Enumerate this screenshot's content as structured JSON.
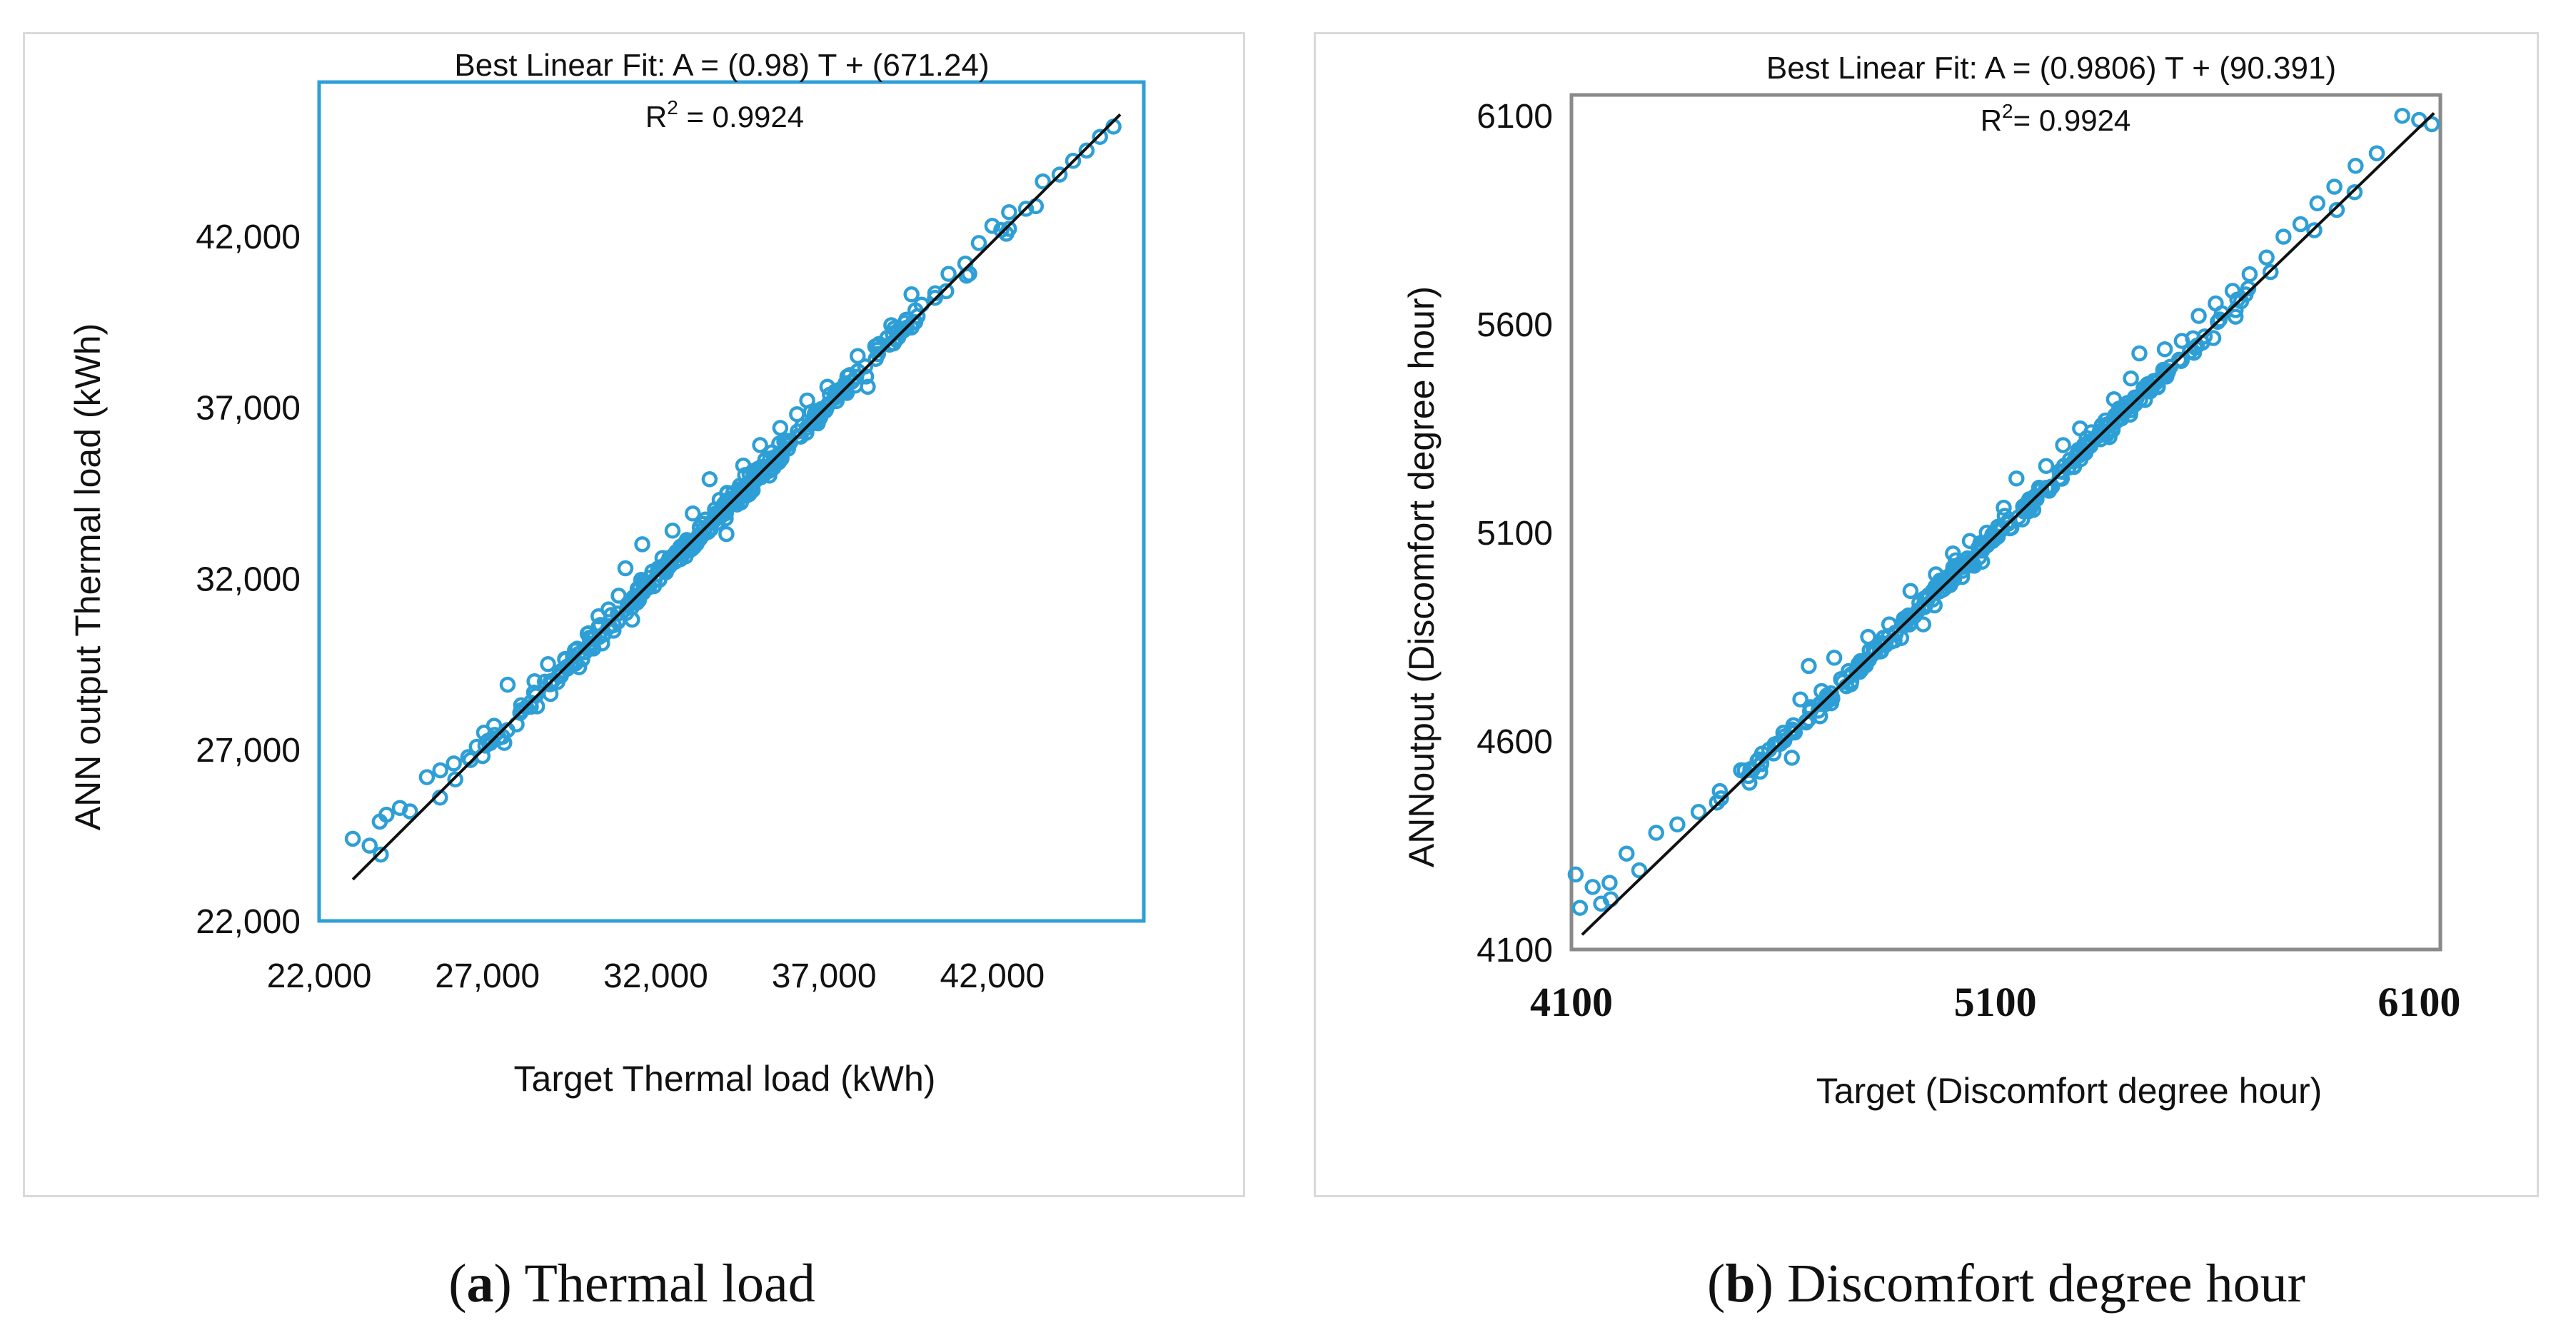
{
  "figure": {
    "colors": {
      "marker": "#2e9fd6",
      "fit_line": "#111111",
      "frame_a": "#2e9fd6",
      "frame_b": "#8a8a8a",
      "panel_border": "#d9d9d9"
    },
    "captions": [
      {
        "letter": "a",
        "text": "Thermal load"
      },
      {
        "letter": "b",
        "text": "Discomfort degree hour"
      }
    ]
  },
  "chart_data": [
    {
      "type": "scatter",
      "title": "Best Linear Fit: A = (0.98) T + (671.24)",
      "subtitle_prefix": "R",
      "subtitle_sup": "2",
      "subtitle_suffix": " = 0.9924",
      "xlabel": "Target Thermal load (kWh)",
      "ylabel": "ANN output Thermal load (kWh)",
      "xlim": [
        22000,
        46500
      ],
      "ylim": [
        22000,
        46500
      ],
      "xticks": [
        22000,
        27000,
        32000,
        37000,
        42000
      ],
      "yticks": [
        22000,
        27000,
        32000,
        37000,
        42000
      ],
      "xtick_labels": [
        "22,000",
        "27,000",
        "32,000",
        "37,000",
        "42,000"
      ],
      "ytick_labels": [
        "22,000",
        "27,000",
        "32,000",
        "37,000",
        "42,000"
      ],
      "fit": {
        "slope": 0.98,
        "intercept": 671.24,
        "x_range": [
          23000,
          45800
        ]
      },
      "scatter_sd": 300,
      "points": [
        [
          23000,
          24400
        ],
        [
          23500,
          24200
        ],
        [
          23800,
          24900
        ],
        [
          24000,
          25100
        ],
        [
          24400,
          25300
        ],
        [
          24700,
          25200
        ],
        [
          25200,
          26200
        ],
        [
          25600,
          26400
        ],
        [
          26000,
          26600
        ],
        [
          26500,
          26700
        ],
        [
          26900,
          27500
        ],
        [
          27200,
          27700
        ],
        [
          27500,
          27200
        ],
        [
          27600,
          28900
        ],
        [
          28000,
          28300
        ],
        [
          28400,
          29000
        ],
        [
          28800,
          29500
        ],
        [
          29200,
          29300
        ],
        [
          29600,
          29900
        ],
        [
          30000,
          30400
        ],
        [
          30300,
          30900
        ],
        [
          30600,
          31100
        ],
        [
          30900,
          31500
        ],
        [
          31100,
          32300
        ],
        [
          31300,
          30800
        ],
        [
          31600,
          33000
        ],
        [
          31900,
          32200
        ],
        [
          32200,
          32600
        ],
        [
          32500,
          33400
        ],
        [
          32800,
          32800
        ],
        [
          33100,
          33900
        ],
        [
          33400,
          33600
        ],
        [
          33600,
          34900
        ],
        [
          33900,
          34300
        ],
        [
          34100,
          33300
        ],
        [
          34300,
          34500
        ],
        [
          34600,
          35300
        ],
        [
          34900,
          35000
        ],
        [
          35100,
          35900
        ],
        [
          35400,
          35500
        ],
        [
          35700,
          36400
        ],
        [
          35900,
          36000
        ],
        [
          36200,
          36800
        ],
        [
          36500,
          37200
        ],
        [
          36800,
          36900
        ],
        [
          37100,
          37600
        ],
        [
          37400,
          37400
        ],
        [
          37700,
          37900
        ],
        [
          38000,
          38500
        ],
        [
          38300,
          37600
        ],
        [
          38600,
          38800
        ],
        [
          39000,
          39400
        ],
        [
          39300,
          39200
        ],
        [
          39600,
          40300
        ],
        [
          39900,
          40000
        ],
        [
          40300,
          40200
        ],
        [
          40700,
          40900
        ],
        [
          41200,
          41200
        ],
        [
          41600,
          41800
        ],
        [
          42000,
          42300
        ],
        [
          42500,
          42700
        ],
        [
          43000,
          42800
        ],
        [
          43500,
          43600
        ],
        [
          44000,
          43800
        ],
        [
          44400,
          44200
        ],
        [
          44800,
          44500
        ],
        [
          45200,
          44900
        ],
        [
          45600,
          45200
        ]
      ]
    },
    {
      "type": "scatter",
      "title": "Best Linear Fit: A = (0.9806) T + (90.391)",
      "subtitle_prefix": "R",
      "subtitle_sup": "2",
      "subtitle_suffix": "= 0.9924",
      "xlabel": "Target (Discomfort degree hour)",
      "ylabel": "ANNoutput (Discomfort degree hour)",
      "xlim": [
        4100,
        6150
      ],
      "ylim": [
        4100,
        6150
      ],
      "xticks": [
        4100,
        5100,
        6100
      ],
      "yticks": [
        4100,
        4600,
        5100,
        5600,
        6100
      ],
      "xtick_labels": [
        "4100",
        "5100",
        "6100"
      ],
      "ytick_labels": [
        "4100",
        "4600",
        "5100",
        "5600",
        "6100"
      ],
      "fit": {
        "slope": 0.9806,
        "intercept": 90.391,
        "x_range": [
          4125,
          6135
        ]
      },
      "scatter_sd": 20,
      "points": [
        [
          4110,
          4280
        ],
        [
          4120,
          4200
        ],
        [
          4150,
          4250
        ],
        [
          4170,
          4210
        ],
        [
          4190,
          4260
        ],
        [
          4230,
          4330
        ],
        [
          4260,
          4290
        ],
        [
          4300,
          4380
        ],
        [
          4350,
          4400
        ],
        [
          4400,
          4430
        ],
        [
          4450,
          4480
        ],
        [
          4500,
          4530
        ],
        [
          4520,
          4500
        ],
        [
          4550,
          4570
        ],
        [
          4600,
          4620
        ],
        [
          4620,
          4560
        ],
        [
          4640,
          4700
        ],
        [
          4660,
          4780
        ],
        [
          4690,
          4720
        ],
        [
          4720,
          4800
        ],
        [
          4760,
          4760
        ],
        [
          4800,
          4850
        ],
        [
          4850,
          4880
        ],
        [
          4900,
          4960
        ],
        [
          4930,
          4880
        ],
        [
          4960,
          5000
        ],
        [
          5000,
          5050
        ],
        [
          5040,
          5080
        ],
        [
          5080,
          5100
        ],
        [
          5120,
          5160
        ],
        [
          5150,
          5230
        ],
        [
          5180,
          5180
        ],
        [
          5220,
          5260
        ],
        [
          5260,
          5310
        ],
        [
          5300,
          5350
        ],
        [
          5340,
          5330
        ],
        [
          5380,
          5420
        ],
        [
          5420,
          5470
        ],
        [
          5440,
          5530
        ],
        [
          5470,
          5460
        ],
        [
          5500,
          5540
        ],
        [
          5540,
          5560
        ],
        [
          5580,
          5620
        ],
        [
          5620,
          5650
        ],
        [
          5660,
          5680
        ],
        [
          5700,
          5720
        ],
        [
          5740,
          5760
        ],
        [
          5780,
          5810
        ],
        [
          5820,
          5840
        ],
        [
          5860,
          5890
        ],
        [
          5900,
          5930
        ],
        [
          5950,
          5980
        ],
        [
          6000,
          6010
        ],
        [
          6060,
          6100
        ],
        [
          6100,
          6090
        ],
        [
          6130,
          6080
        ]
      ]
    }
  ]
}
